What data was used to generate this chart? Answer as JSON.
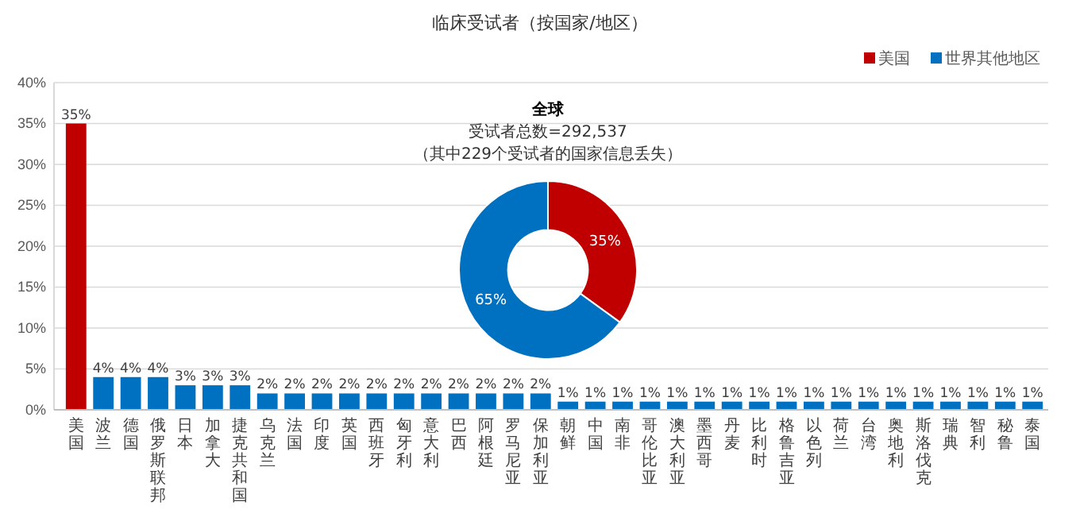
{
  "chart_data": [
    {
      "type": "bar",
      "title": "临床受试者（按国家/地区）",
      "categories": [
        "美国",
        "波兰",
        "德国",
        "俄罗斯联邦",
        "日本",
        "加拿大",
        "捷克共和国",
        "乌克兰",
        "法国",
        "印度",
        "英国",
        "西班牙",
        "匈牙利",
        "意大利",
        "巴西",
        "阿根廷",
        "罗马尼亚",
        "保加利亚",
        "朝鲜",
        "中国",
        "南非",
        "哥伦比亚",
        "澳大利亚",
        "墨西哥",
        "丹麦",
        "比利时",
        "格鲁吉亚",
        "以色列",
        "荷兰",
        "台湾",
        "奥地利",
        "斯洛伐克",
        "瑞典",
        "智利",
        "秘鲁",
        "泰国"
      ],
      "series": [
        {
          "name": "美国",
          "color": "#c00000",
          "values": [
            35,
            null,
            null,
            null,
            null,
            null,
            null,
            null,
            null,
            null,
            null,
            null,
            null,
            null,
            null,
            null,
            null,
            null,
            null,
            null,
            null,
            null,
            null,
            null,
            null,
            null,
            null,
            null,
            null,
            null,
            null,
            null,
            null,
            null,
            null,
            null
          ],
          "value_labels": [
            "35%",
            null,
            null,
            null,
            null,
            null,
            null,
            null,
            null,
            null,
            null,
            null,
            null,
            null,
            null,
            null,
            null,
            null,
            null,
            null,
            null,
            null,
            null,
            null,
            null,
            null,
            null,
            null,
            null,
            null,
            null,
            null,
            null,
            null,
            null,
            null
          ]
        },
        {
          "name": "世界其他地区",
          "color": "#0070c0",
          "values": [
            null,
            4,
            4,
            4,
            3,
            3,
            3,
            2,
            2,
            2,
            2,
            2,
            2,
            2,
            2,
            2,
            2,
            2,
            1,
            1,
            1,
            1,
            1,
            1,
            1,
            1,
            1,
            1,
            1,
            1,
            1,
            1,
            1,
            1,
            1,
            1
          ],
          "value_labels": [
            null,
            "4%",
            "4%",
            "4%",
            "3%",
            "3%",
            "3%",
            "2%",
            "2%",
            "2%",
            "2%",
            "2%",
            "2%",
            "2%",
            "2%",
            "2%",
            "2%",
            "2%",
            "1%",
            "1%",
            "1%",
            "1%",
            "1%",
            "1%",
            "1%",
            "1%",
            "1%",
            "1%",
            "1%",
            "1%",
            "1%",
            "1%",
            "1%",
            "1%",
            "1%",
            "1%"
          ]
        }
      ],
      "ylim": [
        0,
        40
      ],
      "yticks": [
        {
          "value": 0,
          "label": "0%"
        },
        {
          "value": 5,
          "label": "5%"
        },
        {
          "value": 10,
          "label": "10%"
        },
        {
          "value": 15,
          "label": "15%"
        },
        {
          "value": 20,
          "label": "20%"
        },
        {
          "value": 25,
          "label": "25%"
        },
        {
          "value": 30,
          "label": "30%"
        },
        {
          "value": 35,
          "label": "35%"
        },
        {
          "value": 40,
          "label": "40%"
        }
      ],
      "grid": "y",
      "legend": "top right"
    },
    {
      "type": "donut",
      "title": "全球",
      "annotations": [
        "受试者总数=292,537",
        "（其中229个受试者的国家信息丢失）"
      ],
      "categories": [
        null,
        null
      ],
      "values": [
        35,
        65
      ],
      "colors": [
        "#c00000",
        "#0070c0"
      ],
      "value_labels": [
        "35%",
        "65%"
      ]
    }
  ]
}
